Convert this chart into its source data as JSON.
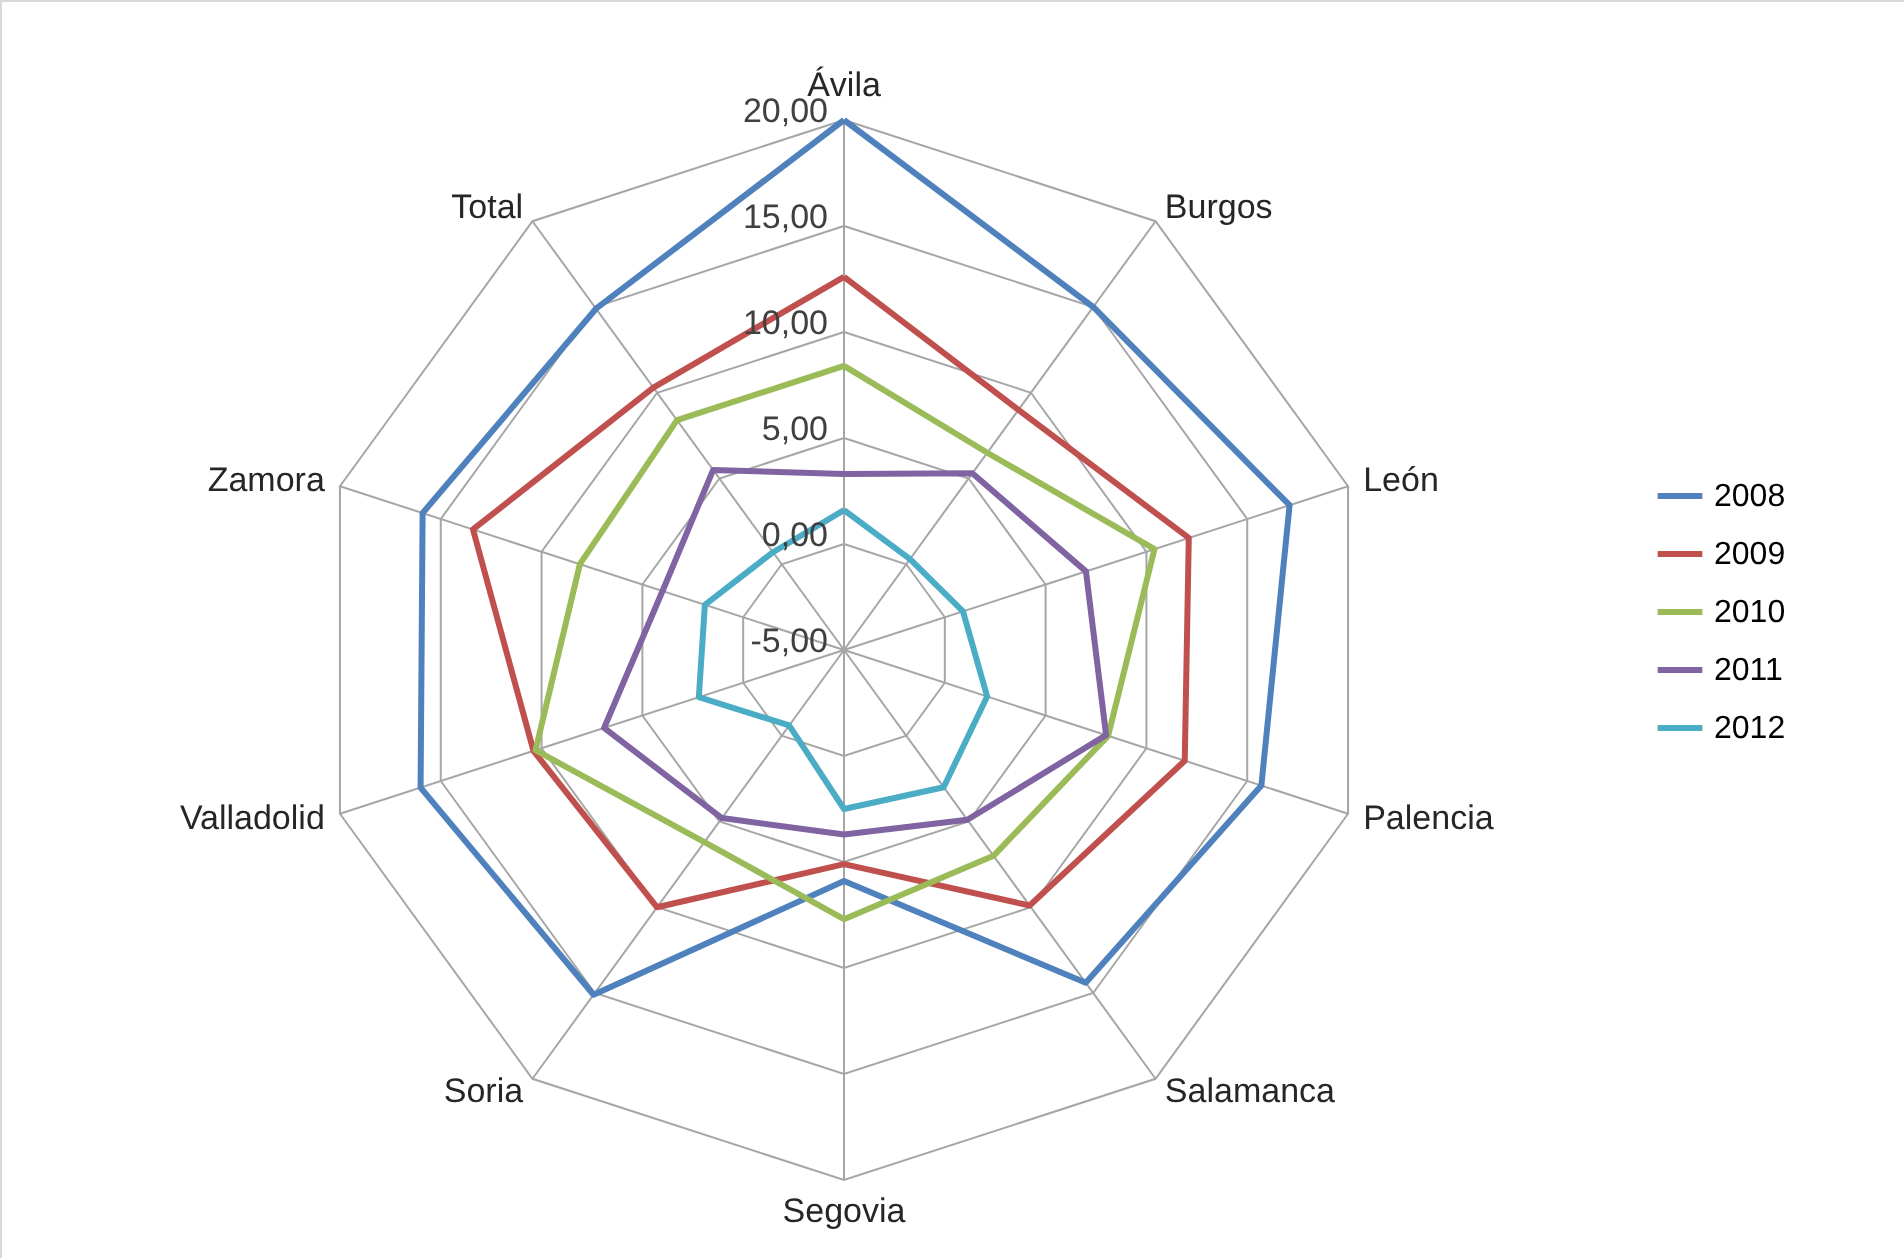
{
  "chart_data": {
    "type": "radar",
    "categories": [
      "Ávila",
      "Burgos",
      "León",
      "Palencia",
      "Salamanca",
      "Segovia",
      "Soria",
      "Valladolid",
      "Zamora",
      "Total"
    ],
    "series": [
      {
        "name": "2008",
        "color": "#4f81bd",
        "values": [
          20.0,
          15.0,
          17.1,
          15.7,
          14.4,
          5.9,
          15.1,
          16.0,
          15.9,
          14.9
        ]
      },
      {
        "name": "2009",
        "color": "#c0504d",
        "values": [
          12.6,
          9.0,
          12.1,
          11.9,
          9.9,
          5.1,
          10.0,
          10.4,
          13.4,
          10.3
        ]
      },
      {
        "name": "2010",
        "color": "#9bbb59",
        "values": [
          8.4,
          6.5,
          10.4,
          8.1,
          7.0,
          7.7,
          6.2,
          10.3,
          8.1,
          8.4
        ]
      },
      {
        "name": "2011",
        "color": "#8064a2",
        "values": [
          3.3,
          5.3,
          7.0,
          8.0,
          4.9,
          3.7,
          4.8,
          6.9,
          4.0,
          5.5
        ]
      },
      {
        "name": "2012",
        "color": "#4bacc6",
        "values": [
          1.6,
          0.3,
          0.9,
          2.1,
          3.0,
          2.5,
          -0.6,
          2.2,
          1.9,
          0.7
        ]
      }
    ],
    "ylim": [
      -5,
      20
    ],
    "yticks": [
      {
        "value": -5,
        "label": "-5,00"
      },
      {
        "value": 0,
        "label": "0,00"
      },
      {
        "value": 5,
        "label": "5,00"
      },
      {
        "value": 10,
        "label": "10,00"
      },
      {
        "value": 15,
        "label": "15,00"
      },
      {
        "value": 20,
        "label": "20,00"
      }
    ],
    "grid": true,
    "legend": "right"
  }
}
